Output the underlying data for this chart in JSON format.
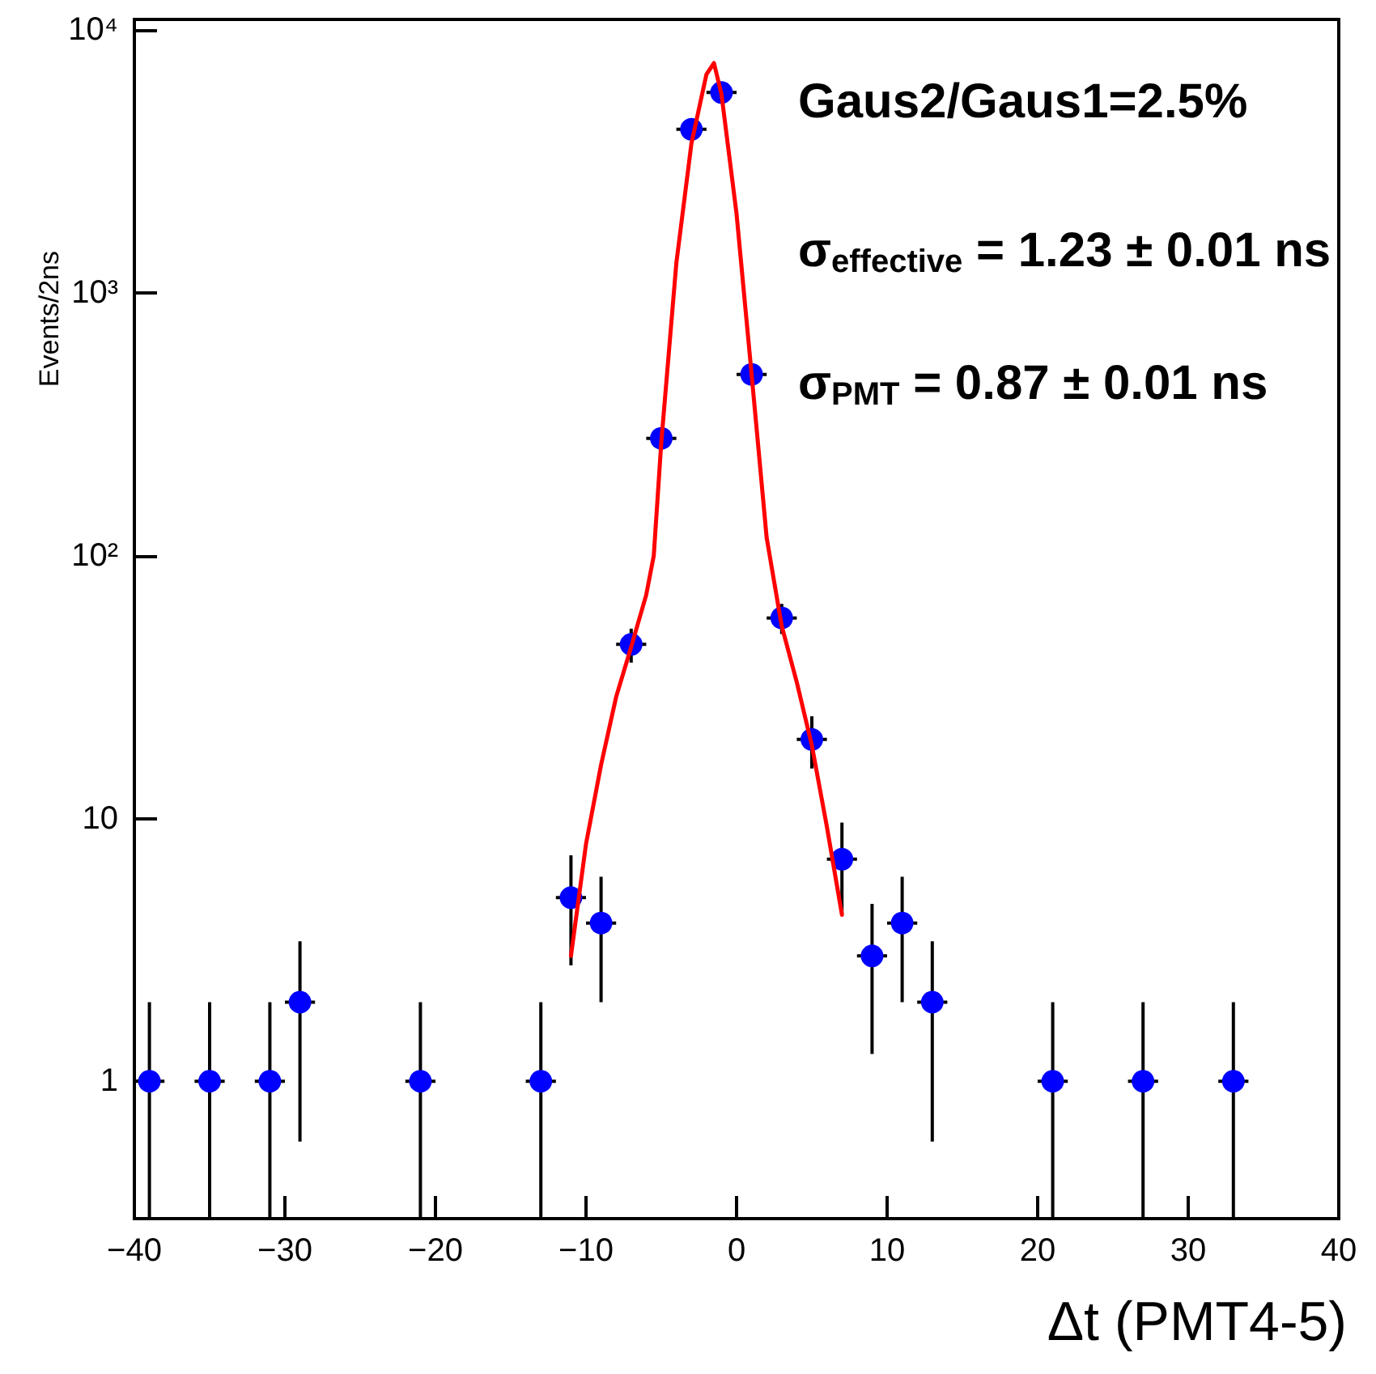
{
  "chart_data": {
    "type": "scatter",
    "xlabel": "Δt (PMT4-5)",
    "ylabel": "Events/2ns",
    "annotations": [
      "Gaus2/Gaus1=2.5%",
      "σ$_{effective}$ = 1.23 ± 0.01 ns",
      "σ$_{PMT}$ = 0.87 ± 0.01 ns"
    ],
    "series": [
      {
        "color": "#0000ff",
        "marker": "circle",
        "x": [
          -39,
          -35,
          -31,
          -29,
          -21,
          -13,
          -11,
          -9,
          -7,
          -5,
          -3,
          -1,
          1,
          3,
          5,
          7,
          9,
          11,
          13,
          21,
          27,
          33
        ],
        "values": [
          1,
          1,
          1,
          2,
          1,
          1,
          5,
          4,
          46,
          280,
          4200,
          5800,
          490,
          58,
          20,
          7,
          3,
          4,
          2,
          1,
          1,
          1
        ],
        "errors": [
          [
            0.3,
            2
          ],
          [
            0.3,
            2
          ],
          [
            0.3,
            2
          ],
          1.41,
          [
            0.3,
            2
          ],
          [
            0.3,
            2
          ],
          2.24,
          2,
          6.8,
          null,
          65,
          76,
          null,
          7.6,
          4.5,
          2.65,
          1.73,
          2,
          1.41,
          [
            0.3,
            2
          ],
          [
            0.3,
            2
          ],
          [
            0.3,
            2
          ]
        ],
        "xerrors": [
          1,
          1,
          1,
          1,
          1,
          1,
          1,
          1,
          1,
          1,
          1,
          1,
          1,
          1,
          1,
          1,
          1,
          1,
          1,
          1,
          1,
          1
        ]
      },
      {
        "type": "line",
        "color": "#ff0000",
        "marker": "none",
        "line_style": "solid",
        "x": [
          -11,
          -10,
          -9,
          -8,
          -7,
          -6,
          -5.5,
          -5,
          -4,
          -3,
          -2,
          -1.5,
          -1,
          0,
          1,
          2,
          3,
          4,
          5,
          6,
          7
        ],
        "values": [
          3,
          8,
          16,
          29,
          45,
          71,
          100,
          270,
          1300,
          3700,
          6800,
          7500,
          5700,
          2000,
          490,
          117,
          54,
          33,
          19,
          9.3,
          4.3
        ]
      }
    ],
    "log": "y",
    "xlim": [
      -40,
      40
    ],
    "xticks": [
      {
        "value": -40,
        "label": "−40"
      },
      {
        "value": -30,
        "label": "−30"
      },
      {
        "value": -20,
        "label": "−20"
      },
      {
        "value": -10,
        "label": "−10"
      },
      0,
      10,
      20,
      30,
      40
    ],
    "ylim": [
      0.3,
      11000
    ],
    "yticks": [
      1,
      10,
      {
        "value": 100,
        "label": "10²"
      },
      {
        "value": 1000,
        "label": "10³"
      },
      {
        "value": 10000,
        "label": "10⁴"
      }
    ]
  }
}
